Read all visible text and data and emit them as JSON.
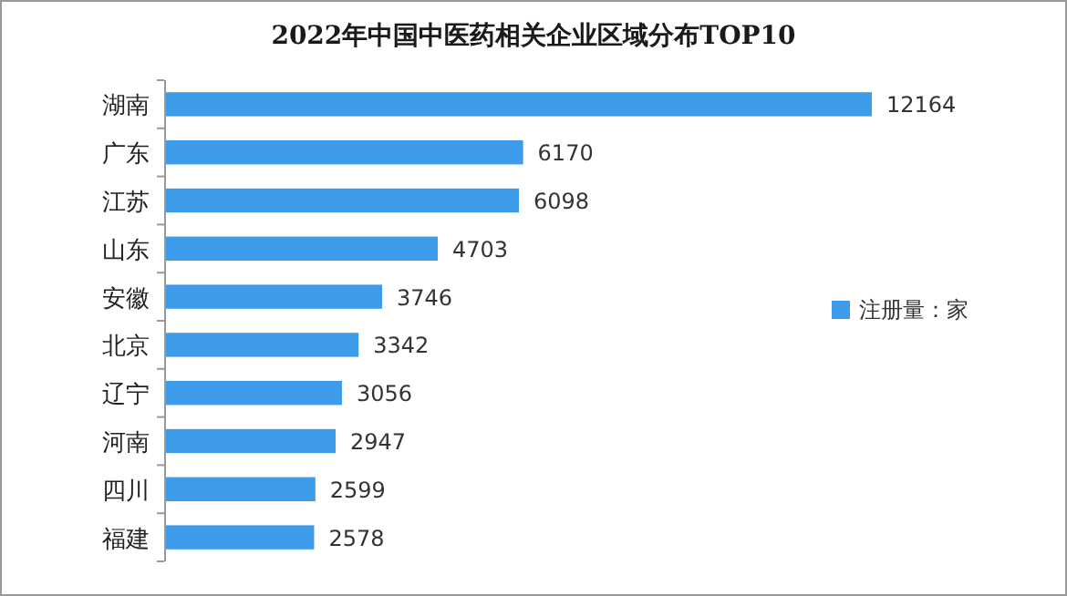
{
  "chart_data": {
    "type": "bar",
    "orientation": "horizontal",
    "title": "2022年中国中医药相关企业区域分布TOP10",
    "categories": [
      "湖南",
      "广东",
      "江苏",
      "山东",
      "安徽",
      "北京",
      "辽宁",
      "河南",
      "四川",
      "福建"
    ],
    "series": [
      {
        "name": "注册量：家",
        "color": "#3d9be9",
        "values": [
          12164,
          6170,
          6098,
          4703,
          3746,
          3342,
          3056,
          2947,
          2599,
          2578
        ]
      }
    ],
    "data_labels": true,
    "legend": "right"
  }
}
